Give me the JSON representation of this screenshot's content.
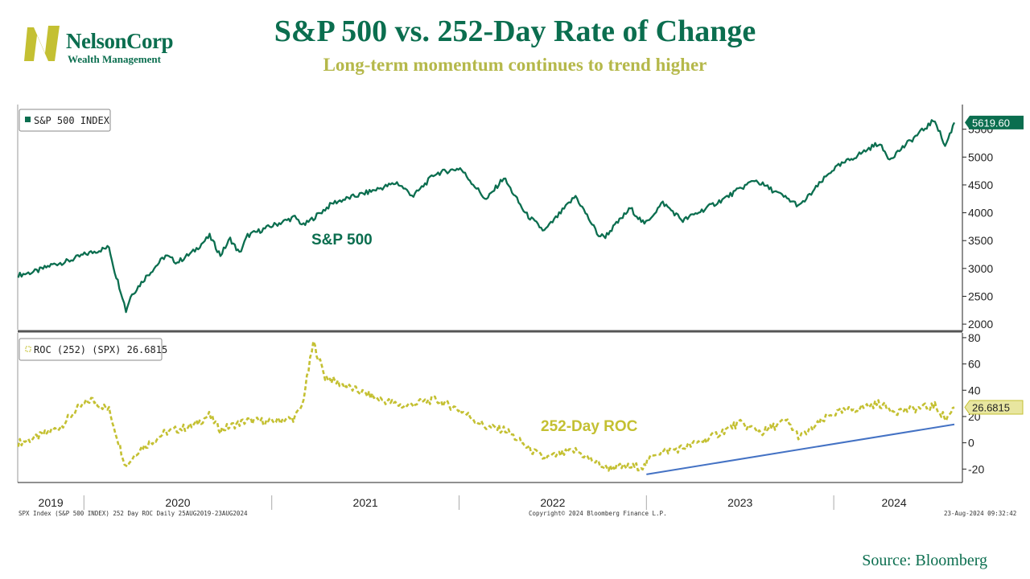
{
  "header": {
    "title": "S&P 500 vs. 252-Day Rate of Change",
    "subtitle": "Long-term momentum continues to trend higher"
  },
  "logo": {
    "name": "NelsonCorp",
    "sub": "Wealth Management"
  },
  "source": "Source: Bloomberg",
  "footer": {
    "left": "SPX Index (S&P 500 INDEX) 252 Day ROC  Daily 25AUG2019-23AUG2024",
    "center": "Copyright© 2024 Bloomberg Finance L.P.",
    "right": "23-Aug-2024 09:32:42"
  },
  "colors": {
    "spx": "#0b6e4f",
    "roc": "#c4c032",
    "trend": "#4472c4",
    "accent_title": "#0b6e4f",
    "accent_sub": "#b5b84a"
  },
  "chart_data": [
    {
      "type": "line",
      "legend": "S&P 500 INDEX",
      "annotation": "S&P 500",
      "last_value_label": "5619.60",
      "ylim": [
        1900,
        5900
      ],
      "yticks": [
        2000,
        2500,
        3000,
        3500,
        4000,
        4500,
        5000,
        5500
      ],
      "x_years": [
        "2019",
        "2020",
        "2021",
        "2022",
        "2023",
        "2024"
      ],
      "x_range": [
        "2019-08-25",
        "2024-08-23"
      ],
      "series": [
        {
          "points": [
            [
              "2019-08-26",
              2880
            ],
            [
              "2019-10-01",
              2950
            ],
            [
              "2019-11-01",
              3070
            ],
            [
              "2019-12-01",
              3130
            ],
            [
              "2020-01-02",
              3250
            ],
            [
              "2020-02-19",
              3380
            ],
            [
              "2020-03-01",
              2950
            ],
            [
              "2020-03-16",
              2500
            ],
            [
              "2020-03-23",
              2240
            ],
            [
              "2020-04-01",
              2500
            ],
            [
              "2020-05-01",
              2850
            ],
            [
              "2020-06-08",
              3230
            ],
            [
              "2020-07-01",
              3110
            ],
            [
              "2020-08-01",
              3300
            ],
            [
              "2020-09-02",
              3580
            ],
            [
              "2020-09-23",
              3240
            ],
            [
              "2020-10-12",
              3530
            ],
            [
              "2020-10-30",
              3270
            ],
            [
              "2020-11-15",
              3590
            ],
            [
              "2020-12-31",
              3760
            ],
            [
              "2021-02-15",
              3920
            ],
            [
              "2021-03-04",
              3770
            ],
            [
              "2021-05-01",
              4180
            ],
            [
              "2021-07-01",
              4350
            ],
            [
              "2021-09-02",
              4540
            ],
            [
              "2021-10-04",
              4300
            ],
            [
              "2021-11-15",
              4700
            ],
            [
              "2022-01-03",
              4800
            ],
            [
              "2022-02-23",
              4230
            ],
            [
              "2022-03-29",
              4630
            ],
            [
              "2022-05-10",
              3990
            ],
            [
              "2022-06-16",
              3670
            ],
            [
              "2022-08-16",
              4300
            ],
            [
              "2022-09-30",
              3590
            ],
            [
              "2022-10-13",
              3580
            ],
            [
              "2022-12-01",
              4080
            ],
            [
              "2022-12-28",
              3790
            ],
            [
              "2023-02-02",
              4180
            ],
            [
              "2023-03-13",
              3860
            ],
            [
              "2023-06-01",
              4250
            ],
            [
              "2023-07-31",
              4590
            ],
            [
              "2023-10-27",
              4120
            ],
            [
              "2023-12-29",
              4770
            ],
            [
              "2024-03-28",
              5250
            ],
            [
              "2024-04-19",
              4970
            ],
            [
              "2024-07-16",
              5670
            ],
            [
              "2024-08-05",
              5190
            ],
            [
              "2024-08-23",
              5620
            ]
          ]
        }
      ]
    },
    {
      "type": "line",
      "legend": "ROC (252) (SPX) 26.6815",
      "annotation": "252-Day ROC",
      "last_value_label": "26.6815",
      "ylim": [
        -29,
        83
      ],
      "yticks": [
        -20,
        0,
        20,
        40,
        60,
        80
      ],
      "series": [
        {
          "name": "ROC (252) (SPX)",
          "points": [
            [
              "2019-08-26",
              0
            ],
            [
              "2019-10-01",
              4
            ],
            [
              "2019-11-15",
              12
            ],
            [
              "2019-12-20",
              26
            ],
            [
              "2020-01-15",
              33
            ],
            [
              "2020-02-19",
              25
            ],
            [
              "2020-03-23",
              -18
            ],
            [
              "2020-04-15",
              -6
            ],
            [
              "2020-06-08",
              8
            ],
            [
              "2020-08-01",
              13
            ],
            [
              "2020-09-01",
              21
            ],
            [
              "2020-09-23",
              10
            ],
            [
              "2020-11-15",
              17
            ],
            [
              "2020-12-31",
              16
            ],
            [
              "2021-02-15",
              19
            ],
            [
              "2021-03-01",
              28
            ],
            [
              "2021-03-23",
              76
            ],
            [
              "2021-04-15",
              50
            ],
            [
              "2021-06-01",
              42
            ],
            [
              "2021-08-01",
              33
            ],
            [
              "2021-09-15",
              28
            ],
            [
              "2021-11-15",
              33
            ],
            [
              "2022-01-03",
              25
            ],
            [
              "2022-02-23",
              12
            ],
            [
              "2022-04-01",
              10
            ],
            [
              "2022-05-15",
              -4
            ],
            [
              "2022-06-16",
              -12
            ],
            [
              "2022-08-16",
              -6
            ],
            [
              "2022-10-13",
              -19
            ],
            [
              "2022-12-28",
              -18
            ],
            [
              "2023-01-15",
              -8
            ],
            [
              "2023-03-13",
              -4
            ],
            [
              "2023-05-01",
              3
            ],
            [
              "2023-06-30",
              15
            ],
            [
              "2023-08-15",
              8
            ],
            [
              "2023-09-30",
              17
            ],
            [
              "2023-10-27",
              4
            ],
            [
              "2023-12-29",
              22
            ],
            [
              "2024-02-15",
              26
            ],
            [
              "2024-03-28",
              30
            ],
            [
              "2024-05-01",
              24
            ],
            [
              "2024-07-16",
              28
            ],
            [
              "2024-08-07",
              18
            ],
            [
              "2024-08-23",
              27
            ]
          ]
        }
      ],
      "trendline": [
        [
          "2023-01-01",
          -24
        ],
        [
          "2024-08-23",
          14
        ]
      ]
    }
  ]
}
